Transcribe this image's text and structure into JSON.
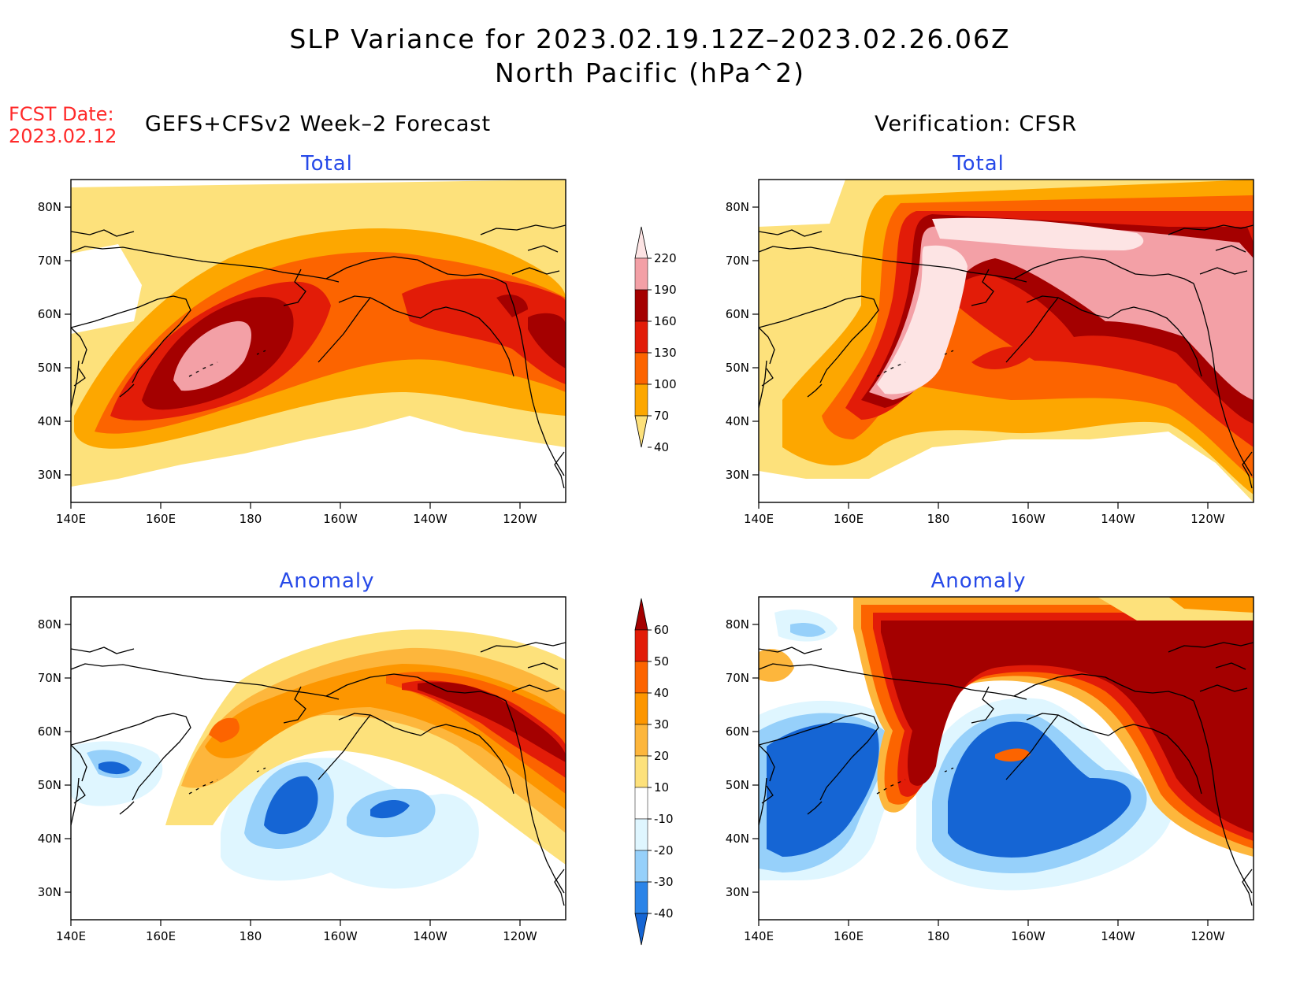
{
  "title": {
    "line1": "SLP Variance for 2023.02.19.12Z–2023.02.26.06Z",
    "line2": "North Pacific (hPa^2)"
  },
  "fcst": {
    "label": "FCST Date:",
    "date": "2023.02.12"
  },
  "headings": {
    "left": "GEFS+CFSv2 Week–2 Forecast",
    "right": "Verification: CFSR"
  },
  "panels": [
    {
      "id": "fcst-total",
      "subtitle": "Total"
    },
    {
      "id": "verif-total",
      "subtitle": "Total"
    },
    {
      "id": "fcst-anomaly",
      "subtitle": "Anomaly"
    },
    {
      "id": "verif-anomaly",
      "subtitle": "Anomaly"
    }
  ],
  "axes": {
    "lon_labels": [
      "140E",
      "160E",
      "180",
      "160W",
      "140W",
      "120W"
    ],
    "lat_labels": [
      "80N",
      "70N",
      "60N",
      "50N",
      "40N",
      "30N"
    ]
  },
  "colorbars": {
    "total": {
      "labels": [
        "40",
        "70",
        "100",
        "130",
        "160",
        "190",
        "220"
      ],
      "colors": [
        "#fde17b",
        "#fda700",
        "#fc6400",
        "#e21c08",
        "#a40000",
        "#f3a0a6",
        "#fde4e4"
      ]
    },
    "anomaly": {
      "labels": [
        "-40",
        "-30",
        "-20",
        "-10",
        "10",
        "20",
        "30",
        "40",
        "50",
        "60"
      ],
      "colors": [
        "#1565d4",
        "#2b84e8",
        "#96d0fa",
        "#dff6ff",
        "#ffffff",
        "#fde17b",
        "#fdb63c",
        "#fd9600",
        "#fc6400",
        "#e21c08",
        "#a40000"
      ]
    }
  }
}
